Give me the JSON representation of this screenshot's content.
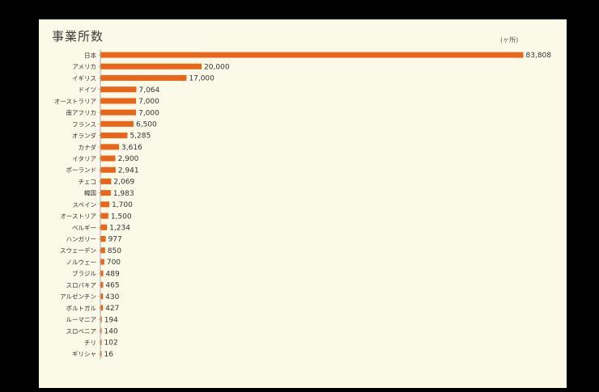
{
  "chart_data": {
    "type": "bar",
    "orientation": "horizontal",
    "title": "事業所数",
    "unit": "(ヶ所)",
    "bar_color": "#e8651a",
    "categories": [
      "日本",
      "アメリカ",
      "イギリス",
      "ドイツ",
      "オーストラリア",
      "南アフリカ",
      "フランス",
      "オランダ",
      "カナダ",
      "イタリア",
      "ポーランド",
      "チェコ",
      "韓国",
      "スペイン",
      "オーストリア",
      "ベルギー",
      "ハンガリー",
      "スウェーデン",
      "ノルウェー",
      "ブラジル",
      "スロバキア",
      "アルゼンチン",
      "ポルトガル",
      "ルーマニア",
      "スロベニア",
      "チリ",
      "ギリシャ"
    ],
    "value_labels": [
      "83,808",
      "20,000",
      "17,000",
      "7,064",
      "7,000",
      "7,000",
      "6,500",
      "5,285",
      "3,616",
      "2,900",
      "2,941",
      "2,069",
      "1,983",
      "1,700",
      "1,500",
      "1,234",
      "977",
      "850",
      "700",
      "489",
      "465",
      "430",
      "427",
      "194",
      "140",
      "102",
      "16"
    ],
    "values": [
      83808,
      20000,
      17000,
      7064,
      7000,
      7000,
      6500,
      5285,
      3616,
      2900,
      2941,
      2069,
      1983,
      1700,
      1500,
      1234,
      977,
      850,
      700,
      489,
      465,
      430,
      427,
      194,
      140,
      102,
      16
    ],
    "xlim": [
      0,
      83808
    ]
  }
}
